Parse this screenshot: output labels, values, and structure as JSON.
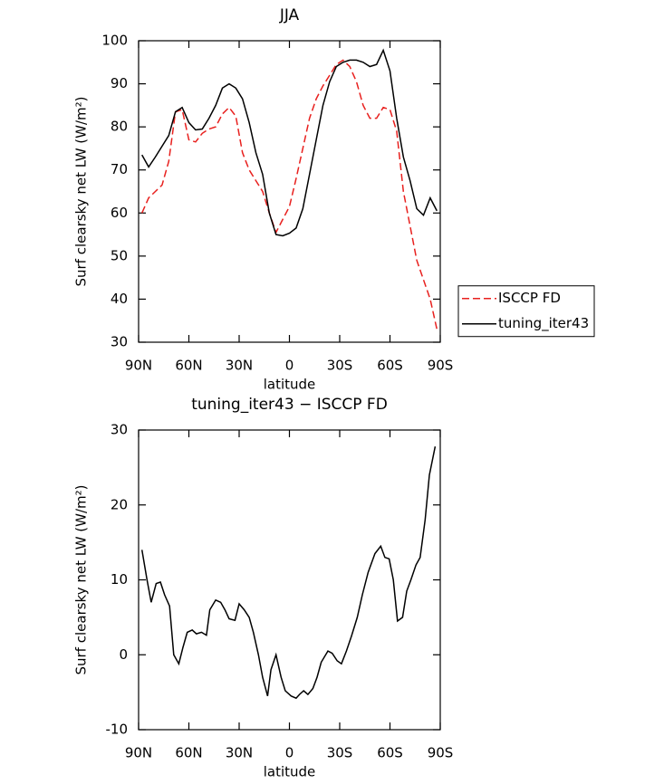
{
  "chart_data": [
    {
      "type": "line",
      "title": "JJA",
      "x_label": "latitude",
      "y_label": "Surf clearsky net LW (W/m²)",
      "x": [
        88,
        84,
        80,
        76,
        72,
        68,
        64,
        60,
        56,
        52,
        48,
        44,
        40,
        36,
        32,
        28,
        24,
        20,
        16,
        12,
        8,
        4,
        0,
        -4,
        -8,
        -12,
        -16,
        -20,
        -24,
        -28,
        -32,
        -36,
        -40,
        -44,
        -48,
        -52,
        -56,
        -60,
        -64,
        -68,
        -72,
        -76,
        -80,
        -84,
        -88
      ],
      "xlim": [
        90,
        -90
      ],
      "xticks": [
        {
          "value": 90,
          "label": "90N"
        },
        {
          "value": 60,
          "label": "60N"
        },
        {
          "value": 30,
          "label": "30N"
        },
        0,
        {
          "value": -30,
          "label": "30S"
        },
        {
          "value": -60,
          "label": "60S"
        },
        {
          "value": -90,
          "label": "90S"
        }
      ],
      "ylim": [
        30,
        100
      ],
      "yticks": [
        30,
        40,
        50,
        60,
        70,
        80,
        90,
        100
      ],
      "legend": "right",
      "series": [
        {
          "name": "ISCCP FD",
          "color": "#e8201e",
          "dashed": true,
          "values": [
            60,
            63.5,
            65,
            66.5,
            72,
            83.5,
            84,
            77,
            76.5,
            78.5,
            79.5,
            80,
            83,
            84.5,
            82.5,
            74,
            70,
            67.5,
            65,
            60,
            55.5,
            58.5,
            61.5,
            68,
            75,
            82,
            86.5,
            89.5,
            92,
            94.5,
            95.5,
            94,
            90.5,
            85,
            82,
            82,
            84.5,
            84,
            79,
            65,
            57,
            49,
            44.5,
            40,
            33
          ]
        },
        {
          "name": "tuning_iter43",
          "color": "#000000",
          "dashed": false,
          "values": [
            73.5,
            70.7,
            73,
            75.5,
            78,
            83.5,
            84.5,
            81,
            79.3,
            79.5,
            82,
            85,
            89,
            90,
            89,
            86.5,
            81,
            74,
            69,
            60,
            55,
            54.7,
            55.3,
            56.5,
            61,
            69,
            77,
            85,
            90.5,
            94,
            95,
            95.5,
            95.5,
            95,
            94,
            94.5,
            97.8,
            93,
            82,
            73,
            67.5,
            61,
            59.5,
            63.5,
            60.5
          ]
        }
      ]
    },
    {
      "type": "line",
      "title": "tuning_iter43 − ISCCP FD",
      "x_label": "latitude",
      "y_label": "Surf clearsky net LW (W/m²)",
      "x": [
        88,
        85,
        82.5,
        79.5,
        77,
        74.5,
        71.5,
        69,
        66,
        63.5,
        61,
        58,
        55.5,
        52.5,
        49.5,
        47.5,
        44,
        41,
        38.5,
        36,
        32.5,
        30,
        27,
        24,
        21.5,
        18.5,
        16,
        13,
        11,
        8,
        5,
        2.5,
        -1,
        -4,
        -6,
        -8.5,
        -11,
        -14,
        -16.5,
        -19,
        -23,
        -25.5,
        -28.5,
        -31,
        -34,
        -37,
        -40.5,
        -43.5,
        -47,
        -51,
        -54.5,
        -57,
        -59.5,
        -62,
        -64.5,
        -67.5,
        -70,
        -72.5,
        -75.5,
        -78,
        -81,
        -83.5,
        -87
      ],
      "xlim": [
        90,
        -90
      ],
      "xticks": [
        {
          "value": 90,
          "label": "90N"
        },
        {
          "value": 60,
          "label": "60N"
        },
        {
          "value": 30,
          "label": "30N"
        },
        0,
        {
          "value": -30,
          "label": "30S"
        },
        {
          "value": -60,
          "label": "60S"
        },
        {
          "value": -90,
          "label": "90S"
        }
      ],
      "ylim": [
        -10,
        30
      ],
      "yticks": [
        -10,
        0,
        10,
        20,
        30
      ],
      "color": "#000000",
      "values": [
        14,
        10,
        7,
        9.5,
        9.7,
        8,
        6.5,
        0,
        -1.2,
        1,
        3,
        3.3,
        2.8,
        3,
        2.6,
        6,
        7.3,
        7,
        6,
        4.8,
        4.6,
        6.8,
        6,
        5,
        3,
        0,
        -3,
        -5.5,
        -2,
        0,
        -3,
        -4.8,
        -5.5,
        -5.8,
        -5.3,
        -4.8,
        -5.3,
        -4.5,
        -3,
        -1,
        0.5,
        0.2,
        -0.8,
        -1.2,
        0.5,
        2.5,
        5,
        8,
        11,
        13.5,
        14.5,
        13,
        12.8,
        10,
        4.5,
        5,
        8.5,
        10,
        12,
        13,
        18,
        24,
        27.8
      ]
    }
  ]
}
